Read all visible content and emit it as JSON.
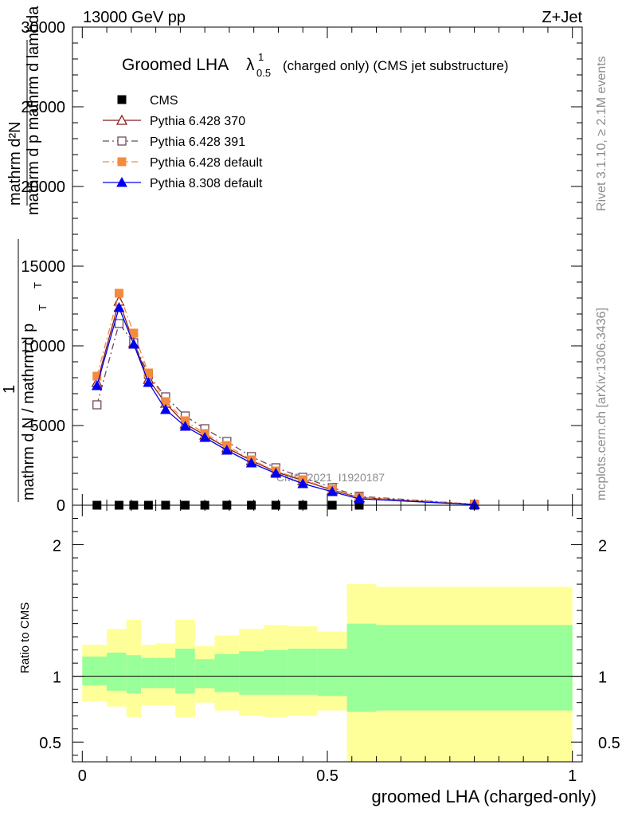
{
  "header": {
    "left": "13000 GeV pp",
    "right": "Z+Jet"
  },
  "side_labels": {
    "rivet": "Rivet 3.1.10, ≥ 2.1M events",
    "mcplots": "mcplots.cern.ch [arXiv:1306.3436]"
  },
  "watermark": "CMS_2021_I1920187",
  "colors": {
    "cms": "#000000",
    "pythia6_370": "#8b1a1a",
    "pythia6_391": "#6e4a5a",
    "pythia6_default": "#f58a3c",
    "pythia8_default": "#0000ee",
    "band_outer": "#ffff99",
    "band_inner": "#99ff99"
  },
  "chart_data": {
    "type": "line",
    "title_main": "Groomed LHA",
    "title_symbol": "λ",
    "title_sup": "1",
    "title_sub": "0.5",
    "title_rest": "(charged only) (CMS jet substructure)",
    "ylabel_top": "mathrm d²N",
    "ylabel_bottom_frac": "mathrm d p mathrm d lambda",
    "ylabel_prefix_num": "1",
    "ylabel_prefix_den": "mathrm d N / mathrm d p",
    "ylabel_sub": "T",
    "ylabel_sub2": "T",
    "xlabel": "groomed LHA (charged-only)",
    "ratio_ylabel": "Ratio to CMS",
    "xlim": [
      -0.02,
      1.02
    ],
    "ylim": [
      0,
      30000
    ],
    "ratio_ylim": [
      0.35,
      2.3
    ],
    "x_ticks": [
      0,
      0.5,
      1
    ],
    "x_tick_labels": [
      "0",
      "0.5",
      "1"
    ],
    "y_ticks": [
      0,
      5000,
      10000,
      15000,
      20000,
      25000,
      30000
    ],
    "y_tick_labels": [
      "0",
      "5000",
      "10000",
      "15000",
      "20000",
      "25000",
      "30000"
    ],
    "ratio_ticks": [
      0.5,
      1,
      2
    ],
    "ratio_tick_labels": [
      "0.5",
      "1",
      "2"
    ],
    "x": [
      0.03,
      0.075,
      0.105,
      0.135,
      0.17,
      0.21,
      0.25,
      0.295,
      0.345,
      0.395,
      0.45,
      0.51,
      0.565,
      0.8
    ],
    "bins": [
      0,
      0.05,
      0.09,
      0.12,
      0.15,
      0.19,
      0.23,
      0.27,
      0.32,
      0.37,
      0.42,
      0.48,
      0.54,
      0.6,
      1.0
    ],
    "series": [
      {
        "name": "CMS",
        "color_key": "cms",
        "marker": "square",
        "line": "none",
        "values": [
          0,
          0,
          0,
          0,
          0,
          0,
          0,
          0,
          0,
          0,
          0,
          0,
          0,
          0
        ]
      },
      {
        "name": "Pythia 6.428 370",
        "color_key": "pythia6_370",
        "marker": "triangle-open",
        "line": "solid",
        "values": [
          7700,
          12800,
          10200,
          7900,
          6400,
          5100,
          4400,
          3600,
          2800,
          2100,
          1550,
          950,
          480,
          50
        ]
      },
      {
        "name": "Pythia 6.428 391",
        "color_key": "pythia6_391",
        "marker": "square-open",
        "line": "dashdot",
        "values": [
          6300,
          11400,
          10200,
          8200,
          6800,
          5600,
          4800,
          4000,
          3050,
          2350,
          1750,
          1100,
          560,
          60
        ]
      },
      {
        "name": "Pythia 6.428 default",
        "color_key": "pythia6_default",
        "marker": "square",
        "line": "dashdot",
        "values": [
          8100,
          13300,
          10800,
          8300,
          6500,
          5300,
          4500,
          3750,
          2850,
          2150,
          1600,
          1000,
          500,
          60
        ]
      },
      {
        "name": "Pythia 8.308 default",
        "color_key": "pythia8_default",
        "marker": "triangle",
        "line": "solid",
        "values": [
          7500,
          12400,
          10100,
          7700,
          6000,
          4950,
          4250,
          3450,
          2650,
          2000,
          1350,
          850,
          400,
          40
        ]
      }
    ],
    "ratio_band_outer": [
      [
        0.77,
        1.36
      ],
      [
        0.77,
        1.36
      ],
      [
        0.81,
        1.24
      ],
      [
        0.77,
        1.36
      ],
      [
        0.69,
        1.43
      ],
      [
        0.78,
        1.24
      ],
      [
        0.78,
        1.25
      ],
      [
        0.69,
        1.43
      ],
      [
        0.8,
        1.23
      ],
      [
        0.74,
        1.31
      ],
      [
        0.7,
        1.36
      ],
      [
        0.69,
        1.39
      ],
      [
        0.7,
        1.38
      ],
      [
        0.74,
        1.34
      ],
      [
        0.33,
        1.7
      ],
      [
        0.33,
        1.68
      ]
    ],
    "ratio_band_inner": [
      [
        0.89,
        1.19
      ],
      [
        0.89,
        1.19
      ],
      [
        0.93,
        1.15
      ],
      [
        0.89,
        1.18
      ],
      [
        0.87,
        1.16
      ],
      [
        0.91,
        1.14
      ],
      [
        0.91,
        1.14
      ],
      [
        0.87,
        1.21
      ],
      [
        0.91,
        1.13
      ],
      [
        0.88,
        1.17
      ],
      [
        0.86,
        1.19
      ],
      [
        0.86,
        1.2
      ],
      [
        0.86,
        1.21
      ],
      [
        0.85,
        1.21
      ],
      [
        0.73,
        1.4
      ],
      [
        0.74,
        1.39
      ]
    ],
    "ratio_band_edges": [
      0.0,
      0.05,
      0.09,
      0.09,
      0.12,
      0.12,
      0.15,
      0.19,
      0.23,
      0.27,
      0.32,
      0.37,
      0.42,
      0.48,
      0.54,
      0.6,
      1.0
    ],
    "legend_position": "top-left",
    "grid": false
  }
}
